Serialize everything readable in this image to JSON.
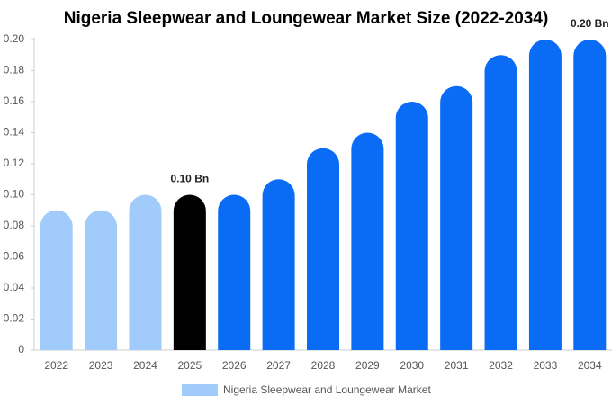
{
  "chart_data": {
    "type": "bar",
    "title": "Nigeria Sleepwear and Loungewear Market Size (2022-2034)",
    "categories": [
      "2022",
      "2023",
      "2024",
      "2025",
      "2026",
      "2027",
      "2028",
      "2029",
      "2030",
      "2031",
      "2032",
      "2033",
      "2034"
    ],
    "series": [
      {
        "name": "Nigeria Sleepwear and Loungewear Market",
        "color": "#a0cbfa",
        "colors": [
          "#a0cbfa",
          "#a0cbfa",
          "#a0cbfa",
          "#000000",
          "#0a6cf5",
          "#0a6cf5",
          "#0a6cf5",
          "#0a6cf5",
          "#0a6cf5",
          "#0a6cf5",
          "#0a6cf5",
          "#0a6cf5",
          "#0a6cf5"
        ],
        "values": [
          0.09,
          0.09,
          0.1,
          0.1,
          0.1,
          0.11,
          0.13,
          0.14,
          0.16,
          0.17,
          0.19,
          0.2,
          0.2
        ],
        "value_labels": [
          null,
          null,
          null,
          "0.10 Bn",
          null,
          null,
          null,
          null,
          null,
          null,
          null,
          null,
          "0.20 Bn"
        ]
      }
    ],
    "ylim": [
      0,
      0.2
    ],
    "yticks": [
      0,
      0.02,
      0.04,
      0.06,
      0.08,
      {
        "value": 0.1,
        "label": "0.10"
      },
      0.12,
      0.14,
      0.16,
      0.18,
      {
        "value": 0.2,
        "label": "0.20"
      }
    ],
    "grid": false
  }
}
